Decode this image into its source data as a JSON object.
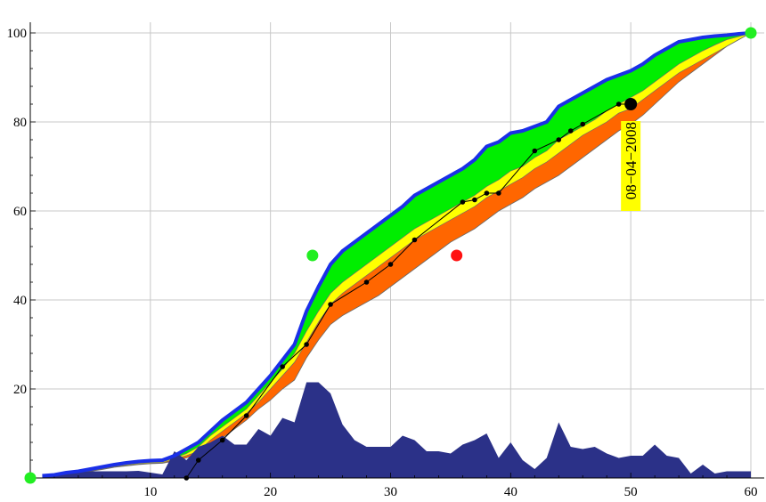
{
  "chart_data": {
    "type": "area",
    "title": "",
    "xlabel": "",
    "ylabel": "",
    "xlim": [
      0,
      60
    ],
    "ylim": [
      0,
      100
    ],
    "grid": true,
    "x_ticks": [
      10,
      20,
      30,
      40,
      50,
      60
    ],
    "y_ticks": [
      20,
      40,
      60,
      80,
      100
    ],
    "x_tick_labels": [
      "10",
      "20",
      "30",
      "40",
      "50",
      "60"
    ],
    "y_tick_labels": [
      "20",
      "40",
      "60",
      "80",
      "100"
    ],
    "annotation": {
      "text": "08−04−2008",
      "x": 50,
      "y": 84
    },
    "colors": {
      "outer_band": "#00ee00",
      "middle_band": "#ffff00",
      "lower_band": "#ff6600",
      "upper_line": "#1a2fe8",
      "histogram": "#2b3188",
      "observed": "#000000",
      "marker_green": "#22ee22",
      "marker_red": "#ff1111",
      "label_bg": "#ffff00"
    },
    "x": [
      1,
      2,
      3,
      4,
      5,
      6,
      7,
      8,
      9,
      10,
      11,
      12,
      13,
      14,
      15,
      16,
      17,
      18,
      19,
      20,
      21,
      22,
      23,
      24,
      25,
      26,
      27,
      28,
      29,
      30,
      31,
      32,
      33,
      34,
      35,
      36,
      37,
      38,
      39,
      40,
      41,
      42,
      43,
      44,
      45,
      46,
      47,
      48,
      49,
      50,
      51,
      52,
      53,
      54,
      55,
      56,
      57,
      58,
      59,
      60
    ],
    "series": [
      {
        "key": "upper",
        "values": [
          0.5,
          0.7,
          1.2,
          1.5,
          2.0,
          2.5,
          3.0,
          3.4,
          3.7,
          3.9,
          4.0,
          5.0,
          6.5,
          8.0,
          10.5,
          13.0,
          15.0,
          17.0,
          20.0,
          23.0,
          26.5,
          30.0,
          37.5,
          43.0,
          48.0,
          51.0,
          53.0,
          55.0,
          57.0,
          59.0,
          61.0,
          63.5,
          65.0,
          66.5,
          68.0,
          69.5,
          71.5,
          74.5,
          75.5,
          77.5,
          78.0,
          79.0,
          80.0,
          83.5,
          85.0,
          86.5,
          88.0,
          89.5,
          90.5,
          91.5,
          93.0,
          95.0,
          96.5,
          98.0,
          98.5,
          99.0,
          99.3,
          99.5,
          99.8,
          100.0
        ]
      },
      {
        "key": "band_mid",
        "values": [
          0.4,
          0.6,
          1.0,
          1.3,
          1.7,
          2.1,
          2.6,
          3.0,
          3.3,
          3.5,
          3.6,
          4.5,
          5.5,
          7.0,
          9.5,
          11.5,
          13.5,
          15.5,
          18.5,
          21.5,
          24.5,
          28.0,
          33.0,
          37.5,
          41.5,
          44.0,
          46.0,
          48.0,
          50.0,
          52.0,
          54.0,
          56.0,
          57.5,
          59.0,
          60.5,
          62.0,
          63.5,
          65.5,
          67.0,
          69.0,
          70.0,
          72.0,
          73.5,
          76.0,
          77.5,
          79.0,
          80.5,
          82.5,
          84.0,
          85.5,
          87.0,
          89.0,
          91.0,
          93.0,
          94.5,
          96.0,
          97.3,
          98.5,
          99.2,
          100.0
        ]
      },
      {
        "key": "band_low",
        "values": [
          0.3,
          0.5,
          0.9,
          1.2,
          1.6,
          2.0,
          2.5,
          2.8,
          3.1,
          3.3,
          3.4,
          4.2,
          5.0,
          6.0,
          8.5,
          10.5,
          12.5,
          14.5,
          17.0,
          20.0,
          23.0,
          26.0,
          30.5,
          35.0,
          39.0,
          41.5,
          43.5,
          45.5,
          47.5,
          49.5,
          51.5,
          53.5,
          55.0,
          56.5,
          58.0,
          59.5,
          61.0,
          63.0,
          64.5,
          66.0,
          67.5,
          69.5,
          71.0,
          73.0,
          75.0,
          77.0,
          78.5,
          80.0,
          82.0,
          83.0,
          85.0,
          87.0,
          89.0,
          91.0,
          92.5,
          94.0,
          95.5,
          97.0,
          98.5,
          100.0
        ]
      },
      {
        "key": "lower",
        "values": [
          0.2,
          0.4,
          0.8,
          1.1,
          1.5,
          1.9,
          2.4,
          2.7,
          3.0,
          3.2,
          3.3,
          3.8,
          4.5,
          5.5,
          7.0,
          9.0,
          11.0,
          13.0,
          15.5,
          17.5,
          20.0,
          22.0,
          27.0,
          31.0,
          34.5,
          36.5,
          38.0,
          39.5,
          41.0,
          43.0,
          45.0,
          47.0,
          49.0,
          51.0,
          53.0,
          54.5,
          56.0,
          58.0,
          60.0,
          61.5,
          63.0,
          65.0,
          66.5,
          68.0,
          70.0,
          72.0,
          74.0,
          76.0,
          78.0,
          79.5,
          81.5,
          84.0,
          86.5,
          89.0,
          91.0,
          93.0,
          95.0,
          97.0,
          98.5,
          100.0
        ]
      },
      {
        "key": "histogram",
        "values": [
          0.5,
          0.6,
          1.0,
          1.3,
          1.5,
          1.5,
          1.5,
          1.5,
          1.6,
          1.2,
          0.8,
          6.0,
          4.0,
          7.0,
          8.0,
          9.5,
          7.5,
          7.5,
          11.0,
          9.5,
          13.5,
          12.5,
          21.5,
          21.5,
          19.0,
          12.0,
          8.5,
          7.0,
          7.0,
          7.0,
          9.5,
          8.5,
          6.0,
          6.0,
          5.5,
          7.5,
          8.5,
          10.0,
          4.5,
          8.0,
          4.0,
          2.0,
          4.5,
          12.5,
          7.0,
          6.5,
          7.0,
          5.5,
          4.5,
          5.0,
          5.0,
          7.5,
          5.0,
          4.5,
          1.0,
          3.0,
          1.0,
          1.5,
          1.5,
          1.5
        ]
      },
      {
        "key": "observed",
        "x": [
          13,
          14,
          16,
          18,
          21,
          23,
          25,
          28,
          30,
          32,
          36,
          37,
          38,
          39,
          42,
          44,
          45,
          46,
          49,
          50
        ],
        "values": [
          0,
          4,
          8.5,
          14,
          25,
          30,
          39,
          44,
          48,
          53.5,
          62,
          62.5,
          64,
          64,
          73.5,
          76,
          78,
          79.5,
          84,
          84
        ]
      }
    ],
    "markers": [
      {
        "color": "green",
        "x": 0,
        "y": 0
      },
      {
        "color": "green",
        "x": 23.5,
        "y": 50
      },
      {
        "color": "red",
        "x": 35.5,
        "y": 50
      },
      {
        "color": "green",
        "x": 60,
        "y": 100
      },
      {
        "color": "black",
        "x": 50,
        "y": 84
      }
    ]
  }
}
